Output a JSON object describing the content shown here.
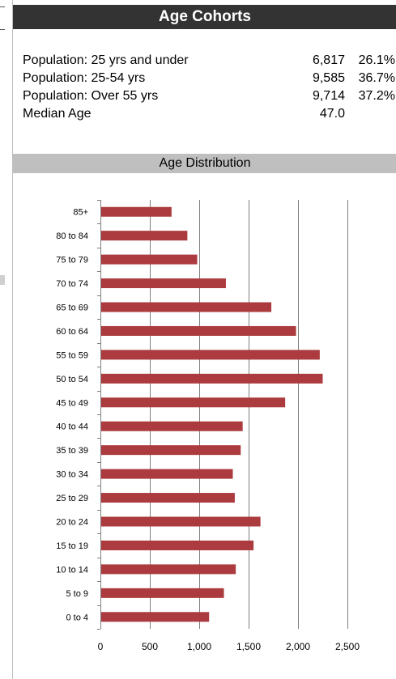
{
  "header": {
    "title": "Age Cohorts"
  },
  "cohorts": [
    {
      "label": "Population: 25 yrs and under",
      "value": "6,817",
      "percent": "26.1%"
    },
    {
      "label": "Population: 25-54 yrs",
      "value": "9,585",
      "percent": "36.7%"
    },
    {
      "label": "Population: Over 55 yrs",
      "value": "9,714",
      "percent": "37.2%"
    },
    {
      "label": "Median Age",
      "value": "47.0",
      "percent": ""
    }
  ],
  "chart_section": {
    "title": "Age Distribution"
  },
  "chart_data": {
    "type": "bar",
    "orientation": "horizontal",
    "title": "Age Distribution",
    "categories": [
      "85+",
      "80 to 84",
      "75 to 79",
      "70 to 74",
      "65 to 69",
      "60 to 64",
      "55 to 59",
      "50 to 54",
      "45 to 49",
      "40 to 44",
      "35 to 39",
      "30 to 34",
      "25 to 29",
      "20 to 24",
      "15 to 19",
      "10 to 14",
      "5 to 9",
      "0 to 4"
    ],
    "values": [
      720,
      880,
      980,
      1270,
      1730,
      1980,
      2220,
      2250,
      1870,
      1440,
      1420,
      1340,
      1360,
      1620,
      1550,
      1370,
      1250,
      1100
    ],
    "xlim": [
      0,
      2500
    ],
    "xticks": [
      0,
      500,
      1000,
      1500,
      2000,
      2500
    ],
    "xtick_labels": [
      "0",
      "500",
      "1,000",
      "1,500",
      "2,000",
      "2,500"
    ],
    "grid": "vertical",
    "legend": "none",
    "colors": {
      "bar": "#ab3b3e",
      "grid": "#7f7f7f"
    }
  }
}
